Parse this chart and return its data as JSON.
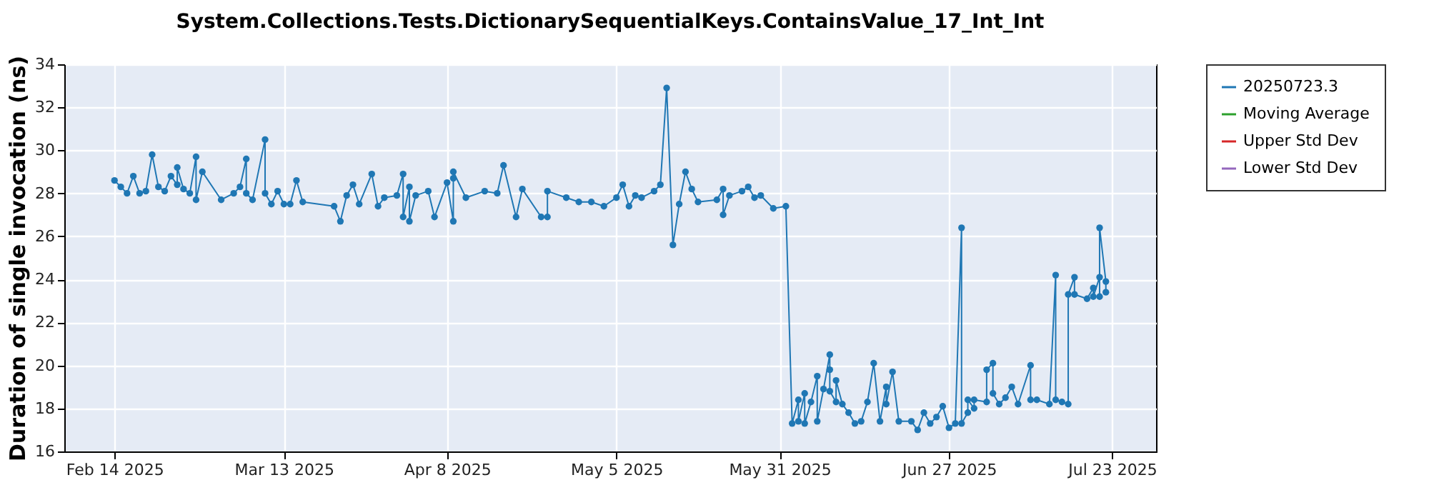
{
  "chart_data": {
    "type": "line",
    "title": "System.Collections.Tests.DictionarySequentialKeys.ContainsValue_17_Int_Int",
    "ylabel": "Duration of single invocation (ns)",
    "x": [
      "2025-02-14",
      "2025-02-15",
      "2025-02-16",
      "2025-02-17",
      "2025-02-18",
      "2025-02-19",
      "2025-02-20",
      "2025-02-21",
      "2025-02-22",
      "2025-02-23",
      "2025-02-24",
      "2025-02-24",
      "2025-02-25",
      "2025-02-26",
      "2025-02-27",
      "2025-02-27",
      "2025-02-28",
      "2025-03-03",
      "2025-03-05",
      "2025-03-06",
      "2025-03-07",
      "2025-03-07",
      "2025-03-08",
      "2025-03-10",
      "2025-03-10",
      "2025-03-11",
      "2025-03-12",
      "2025-03-13",
      "2025-03-14",
      "2025-03-15",
      "2025-03-16",
      "2025-03-21",
      "2025-03-22",
      "2025-03-23",
      "2025-03-24",
      "2025-03-25",
      "2025-03-27",
      "2025-03-28",
      "2025-03-29",
      "2025-03-31",
      "2025-04-01",
      "2025-04-01",
      "2025-04-02",
      "2025-04-02",
      "2025-04-03",
      "2025-04-05",
      "2025-04-06",
      "2025-04-08",
      "2025-04-09",
      "2025-04-09",
      "2025-04-09",
      "2025-04-11",
      "2025-04-14",
      "2025-04-16",
      "2025-04-17",
      "2025-04-19",
      "2025-04-20",
      "2025-04-23",
      "2025-04-24",
      "2025-04-24",
      "2025-04-27",
      "2025-04-29",
      "2025-05-01",
      "2025-05-03",
      "2025-05-05",
      "2025-05-06",
      "2025-05-07",
      "2025-05-08",
      "2025-05-09",
      "2025-05-11",
      "2025-05-12",
      "2025-05-13",
      "2025-05-14",
      "2025-05-15",
      "2025-05-16",
      "2025-05-17",
      "2025-05-18",
      "2025-05-21",
      "2025-05-22",
      "2025-05-22",
      "2025-05-23",
      "2025-05-25",
      "2025-05-26",
      "2025-05-27",
      "2025-05-28",
      "2025-05-30",
      "2025-06-01",
      "2025-06-02",
      "2025-06-03",
      "2025-06-03",
      "2025-06-04",
      "2025-06-04",
      "2025-06-05",
      "2025-06-06",
      "2025-06-06",
      "2025-06-07",
      "2025-06-08",
      "2025-06-08",
      "2025-06-08",
      "2025-06-09",
      "2025-06-09",
      "2025-06-10",
      "2025-06-11",
      "2025-06-12",
      "2025-06-13",
      "2025-06-14",
      "2025-06-15",
      "2025-06-16",
      "2025-06-17",
      "2025-06-17",
      "2025-06-18",
      "2025-06-19",
      "2025-06-21",
      "2025-06-22",
      "2025-06-23",
      "2025-06-24",
      "2025-06-25",
      "2025-06-26",
      "2025-06-27",
      "2025-06-28",
      "2025-06-29",
      "2025-06-29",
      "2025-06-30",
      "2025-06-30",
      "2025-07-01",
      "2025-07-01",
      "2025-07-03",
      "2025-07-03",
      "2025-07-04",
      "2025-07-04",
      "2025-07-05",
      "2025-07-06",
      "2025-07-07",
      "2025-07-08",
      "2025-07-10",
      "2025-07-10",
      "2025-07-11",
      "2025-07-13",
      "2025-07-14",
      "2025-07-14",
      "2025-07-15",
      "2025-07-16",
      "2025-07-16",
      "2025-07-17",
      "2025-07-17",
      "2025-07-19",
      "2025-07-20",
      "2025-07-20",
      "2025-07-21",
      "2025-07-21",
      "2025-07-21",
      "2025-07-22",
      "2025-07-22"
    ],
    "series": [
      {
        "name": "20250723.3",
        "color": "#1f77b4",
        "values": [
          28.6,
          28.3,
          28.0,
          28.8,
          28.0,
          28.1,
          29.8,
          28.3,
          28.1,
          28.8,
          28.4,
          29.2,
          28.2,
          28.0,
          29.7,
          27.7,
          29.0,
          27.7,
          28.0,
          28.3,
          29.6,
          28.0,
          27.7,
          30.5,
          28.0,
          27.5,
          28.1,
          27.5,
          27.5,
          28.6,
          27.6,
          27.4,
          26.7,
          27.9,
          28.4,
          27.5,
          28.9,
          27.4,
          27.8,
          27.9,
          28.9,
          26.9,
          28.3,
          26.7,
          27.9,
          28.1,
          26.9,
          28.5,
          26.7,
          28.7,
          29.0,
          27.8,
          28.1,
          28.0,
          29.3,
          26.9,
          28.2,
          26.9,
          26.9,
          28.1,
          27.8,
          27.6,
          27.6,
          27.4,
          27.8,
          28.4,
          27.4,
          27.9,
          27.8,
          28.1,
          28.4,
          32.9,
          25.6,
          27.5,
          29.0,
          28.2,
          27.6,
          27.7,
          28.2,
          27.0,
          27.9,
          28.1,
          28.3,
          27.8,
          27.9,
          27.3,
          27.4,
          17.3,
          18.4,
          17.4,
          18.7,
          17.3,
          18.3,
          19.5,
          17.4,
          18.9,
          20.5,
          19.8,
          18.8,
          18.3,
          19.3,
          18.2,
          17.8,
          17.3,
          17.4,
          18.3,
          20.1,
          17.4,
          19.0,
          18.2,
          19.7,
          17.4,
          17.4,
          17.0,
          17.8,
          17.3,
          17.6,
          18.1,
          17.1,
          17.3,
          26.4,
          17.3,
          17.8,
          18.4,
          18.0,
          18.4,
          18.3,
          19.8,
          20.1,
          18.7,
          18.2,
          18.5,
          19.0,
          18.2,
          20.0,
          18.4,
          18.4,
          18.2,
          24.2,
          18.4,
          18.3,
          18.2,
          23.3,
          24.1,
          23.3,
          23.1,
          23.6,
          23.2,
          24.1,
          23.2,
          26.4,
          23.9,
          23.4
        ]
      },
      {
        "name": "Moving Average",
        "color": "#2ca02c",
        "values": [
          null,
          null,
          null,
          null,
          null,
          null,
          null,
          null,
          null,
          null,
          null,
          null,
          null,
          null,
          null,
          null,
          null,
          null,
          null,
          null,
          null,
          null,
          null,
          null,
          null,
          null,
          null,
          null,
          null,
          null,
          null,
          null,
          null,
          null,
          null,
          null,
          null,
          null,
          null,
          null,
          null,
          null,
          null,
          null,
          null,
          null,
          null,
          null,
          null,
          null,
          null,
          null,
          null,
          null,
          null,
          null,
          null,
          null,
          null,
          null,
          null,
          null,
          null,
          null,
          null,
          null,
          null,
          null,
          null,
          null,
          null,
          null,
          null,
          null,
          null,
          null,
          null,
          null,
          null,
          null,
          null,
          null,
          null,
          null,
          null,
          null,
          null,
          null,
          null,
          null,
          null,
          null,
          null,
          null,
          null,
          null,
          null,
          null,
          null,
          null,
          null,
          null,
          null,
          null,
          null,
          null,
          null,
          null,
          null,
          null,
          null,
          null,
          null,
          null,
          null,
          null,
          null,
          null,
          null,
          null,
          null,
          null,
          null,
          null,
          null,
          null,
          null,
          null,
          null,
          null,
          null,
          null,
          null,
          null,
          null,
          null,
          null,
          null,
          null,
          null,
          null,
          null,
          null,
          null,
          null,
          null,
          null,
          null,
          null,
          null,
          null,
          null,
          null
        ]
      },
      {
        "name": "Upper Std Dev",
        "color": "#d62728",
        "values": [
          null,
          null,
          null,
          null,
          null,
          null,
          null,
          null,
          null,
          null,
          null,
          null,
          null,
          null,
          null,
          null,
          null,
          null,
          null,
          null,
          null,
          null,
          null,
          null,
          null,
          null,
          null,
          null,
          null,
          null,
          null,
          null,
          null,
          null,
          null,
          null,
          null,
          null,
          null,
          null,
          null,
          null,
          null,
          null,
          null,
          null,
          null,
          null,
          null,
          null,
          null,
          null,
          null,
          null,
          null,
          null,
          null,
          null,
          null,
          null,
          null,
          null,
          null,
          null,
          null,
          null,
          null,
          null,
          null,
          null,
          null,
          null,
          null,
          null,
          null,
          null,
          null,
          null,
          null,
          null,
          null,
          null,
          null,
          null,
          null,
          null,
          null,
          null,
          null,
          null,
          null,
          null,
          null,
          null,
          null,
          null,
          null,
          null,
          null,
          null,
          null,
          null,
          null,
          null,
          null,
          null,
          null,
          null,
          null,
          null,
          null,
          null,
          null,
          null,
          null,
          null,
          null,
          null,
          null,
          null,
          null,
          null,
          null,
          null,
          null,
          null,
          null,
          null,
          null,
          null,
          null,
          null,
          null,
          null,
          null,
          null,
          null,
          null,
          null,
          null,
          null,
          null,
          null,
          null,
          null,
          null,
          null,
          null,
          null,
          null,
          null,
          null,
          null
        ]
      },
      {
        "name": "Lower Std Dev",
        "color": "#9467bd",
        "values": [
          null,
          null,
          null,
          null,
          null,
          null,
          null,
          null,
          null,
          null,
          null,
          null,
          null,
          null,
          null,
          null,
          null,
          null,
          null,
          null,
          null,
          null,
          null,
          null,
          null,
          null,
          null,
          null,
          null,
          null,
          null,
          null,
          null,
          null,
          null,
          null,
          null,
          null,
          null,
          null,
          null,
          null,
          null,
          null,
          null,
          null,
          null,
          null,
          null,
          null,
          null,
          null,
          null,
          null,
          null,
          null,
          null,
          null,
          null,
          null,
          null,
          null,
          null,
          null,
          null,
          null,
          null,
          null,
          null,
          null,
          null,
          null,
          null,
          null,
          null,
          null,
          null,
          null,
          null,
          null,
          null,
          null,
          null,
          null,
          null,
          null,
          null,
          null,
          null,
          null,
          null,
          null,
          null,
          null,
          null,
          null,
          null,
          null,
          null,
          null,
          null,
          null,
          null,
          null,
          null,
          null,
          null,
          null,
          null,
          null,
          null,
          null,
          null,
          null,
          null,
          null,
          null,
          null,
          null,
          null,
          null,
          null,
          null,
          null,
          null,
          null,
          null,
          null,
          null,
          null,
          null,
          null,
          null,
          null,
          null,
          null,
          null,
          null,
          null,
          null,
          null,
          null,
          null,
          null,
          null,
          null,
          null,
          null,
          null,
          null,
          null,
          null,
          null
        ]
      }
    ],
    "xlim": [
      "2025-02-06",
      "2025-07-30"
    ],
    "xticks": [
      {
        "value": "2025-02-14",
        "label": "Feb 14 2025"
      },
      {
        "value": "2025-03-13",
        "label": "Mar 13 2025"
      },
      {
        "value": "2025-04-08",
        "label": "Apr 8 2025"
      },
      {
        "value": "2025-05-05",
        "label": "May 5 2025"
      },
      {
        "value": "2025-05-31",
        "label": "May 31 2025"
      },
      {
        "value": "2025-06-27",
        "label": "Jun 27 2025"
      },
      {
        "value": "2025-07-23",
        "label": "Jul 23 2025"
      }
    ],
    "ylim": [
      16,
      34
    ],
    "yticks": [
      16,
      18,
      20,
      22,
      24,
      26,
      28,
      30,
      32,
      34
    ],
    "grid": true,
    "legend": "right",
    "marker": "circle",
    "line_style": "solid"
  }
}
